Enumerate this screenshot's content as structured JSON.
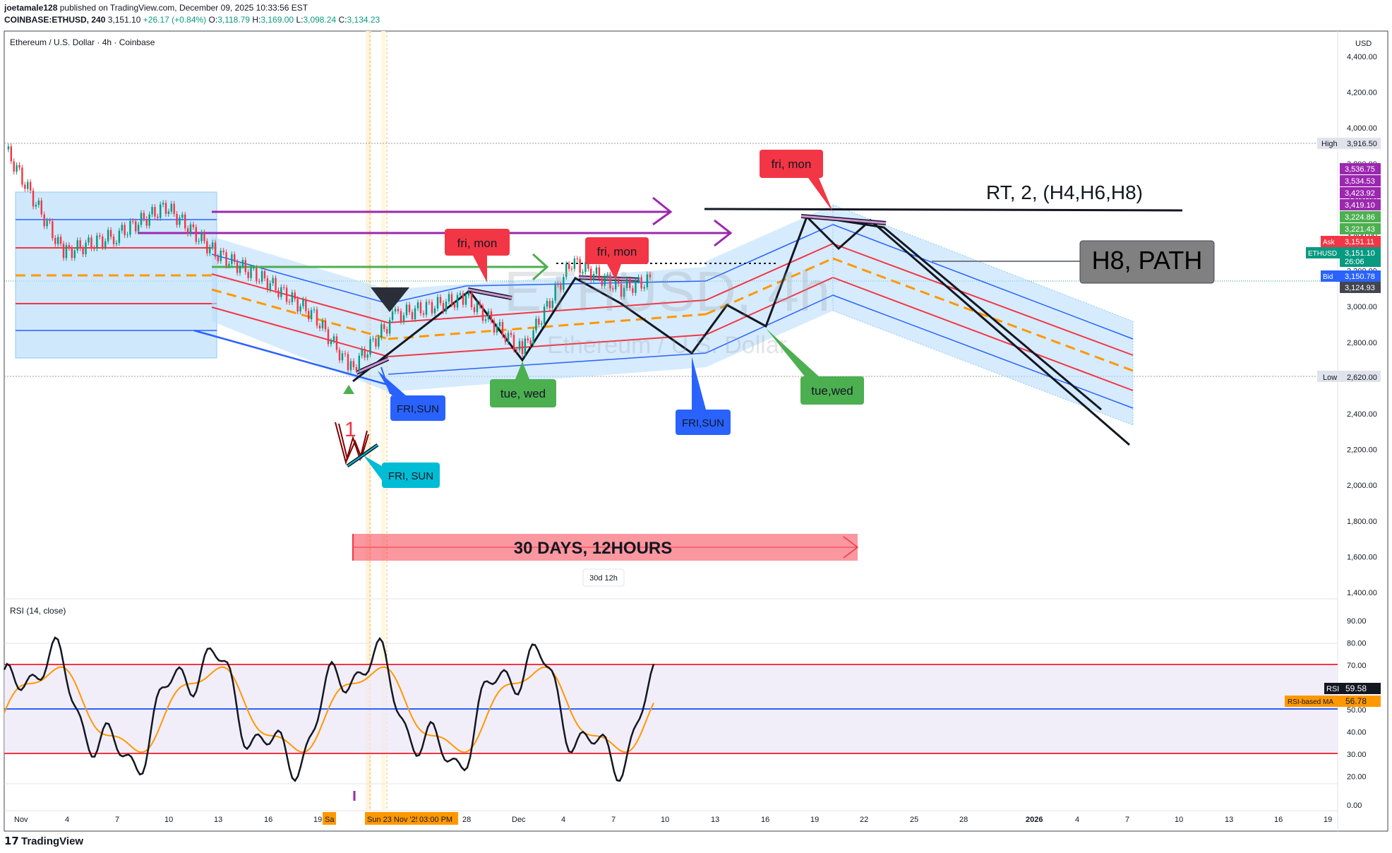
{
  "header": {
    "publisher": "joetamale128",
    "published_line": "published on TradingView.com, December 09, 2025 10:33:56 EST",
    "symbol": "COINBASE:ETHUSD, 240",
    "last": "3,151.10",
    "change": "+26.17 (+0.84%)",
    "open": "3,118.79",
    "high": "3,169.00",
    "low": "3,098.24",
    "close": "3,134.23"
  },
  "pane_title": "Ethereum / U.S. Dollar · 4h · Coinbase",
  "watermark": {
    "line1": "ETHUSD, 4h",
    "line2": "Ethereum / U.S. Dollar"
  },
  "currency": "USD",
  "footer_logo": "TradingView",
  "price_axis": {
    "ticks": [
      "4,400.00",
      "4,200.00",
      "4,000.00",
      "3,800.00",
      "3,600.00",
      "3,400.00",
      "3,200.00",
      "3,000.00",
      "2,800.00",
      "2,600.00",
      "2,400.00",
      "2,200.00",
      "2,000.00",
      "1,800.00",
      "1,600.00",
      "1,400.00"
    ],
    "high_label": "High",
    "high_value": "3,916.50",
    "low_label": "Low",
    "low_value": "2,620.00",
    "tags": [
      {
        "text": "3,536.75",
        "color": "#9c27b0"
      },
      {
        "text": "3,534.53",
        "color": "#9c27b0"
      },
      {
        "text": "3,423.92",
        "color": "#9c27b0"
      },
      {
        "text": "3,419.10",
        "color": "#9c27b0"
      },
      {
        "text": "3,224.86",
        "color": "#4caf50"
      },
      {
        "text": "3,221.43",
        "color": "#4caf50"
      },
      {
        "text": "3,151.11",
        "color": "#f23645",
        "prefix": "Ask"
      },
      {
        "text": "3,151.10",
        "color": "#089981",
        "prefix": "ETHUSD",
        "sub": "26:06"
      },
      {
        "text": "3,150.78",
        "color": "#2962ff",
        "prefix": "Bid"
      },
      {
        "text": "3,124.93",
        "color": "#434651"
      }
    ]
  },
  "rsi": {
    "title": "RSI (14, close)",
    "ticks": [
      "90.00",
      "80.00",
      "70.00",
      "60.00",
      "50.00",
      "40.00",
      "30.00",
      "20.00",
      "0.00"
    ],
    "rsi_label": "RSI",
    "rsi_value": "59.58",
    "ma_label": "RSI-based MA",
    "ma_value": "56.78"
  },
  "time_axis": {
    "labels": [
      "Nov",
      "4",
      "7",
      "10",
      "13",
      "16",
      "19",
      "Sa",
      "Sun 23 Nov '25",
      "03:00 PM",
      "28",
      "Dec",
      "4",
      "7",
      "10",
      "13",
      "16",
      "19",
      "22",
      "25",
      "28",
      "2026",
      "4",
      "7",
      "10",
      "13",
      "16",
      "19"
    ]
  },
  "annotations": {
    "callouts": [
      {
        "text": "fri, mon",
        "color": "#f23645"
      },
      {
        "text": "fri, mon",
        "color": "#f23645"
      },
      {
        "text": "fri, mon",
        "color": "#f23645"
      },
      {
        "text": "tue, wed",
        "color": "#4caf50"
      },
      {
        "text": "tue,wed",
        "color": "#4caf50"
      },
      {
        "text": "FRI,SUN",
        "color": "#2962ff"
      },
      {
        "text": "FRI,SUN",
        "color": "#2962ff"
      },
      {
        "text": "FRI, SUN",
        "color": "#00bcd4"
      }
    ],
    "rt_text": "RT, 2, (H4,H6,H8)",
    "h8_text": "H8, PATH",
    "range_text": "30 DAYS, 12HOURS",
    "range_sub": "30d 12h",
    "wave_number": "1"
  },
  "chart_data": {
    "type": "line",
    "title": "Ethereum / U.S. Dollar · 4h · Coinbase",
    "xlabel": "",
    "ylabel": "",
    "x": [
      "Nov 1",
      "Nov 4",
      "Nov 7",
      "Nov 10",
      "Nov 13",
      "Nov 16",
      "Nov 19",
      "Nov 21",
      "Nov 25",
      "Nov 28",
      "Dec 1",
      "Dec 4",
      "Dec 7",
      "Dec 9"
    ],
    "series": [
      {
        "name": "ETHUSD",
        "values": [
          3880,
          3300,
          3400,
          3560,
          3300,
          3150,
          2950,
          2650,
          2950,
          3050,
          2750,
          3250,
          3100,
          3151
        ]
      }
    ],
    "projection": {
      "x": [
        "Dec 9",
        "Dec 13",
        "Dec 15",
        "Dec 17",
        "Dec 19",
        "Dec 21",
        "Dec 23",
        "Jan 7"
      ],
      "values": [
        3150,
        2750,
        3000,
        2900,
        3500,
        3400,
        3480,
        2250
      ]
    },
    "ylim": [
      1300,
      4450
    ],
    "rsi_ylim": [
      0,
      100
    ],
    "rsi_levels": [
      70,
      50,
      30
    ],
    "legend": "none",
    "grid": false
  }
}
